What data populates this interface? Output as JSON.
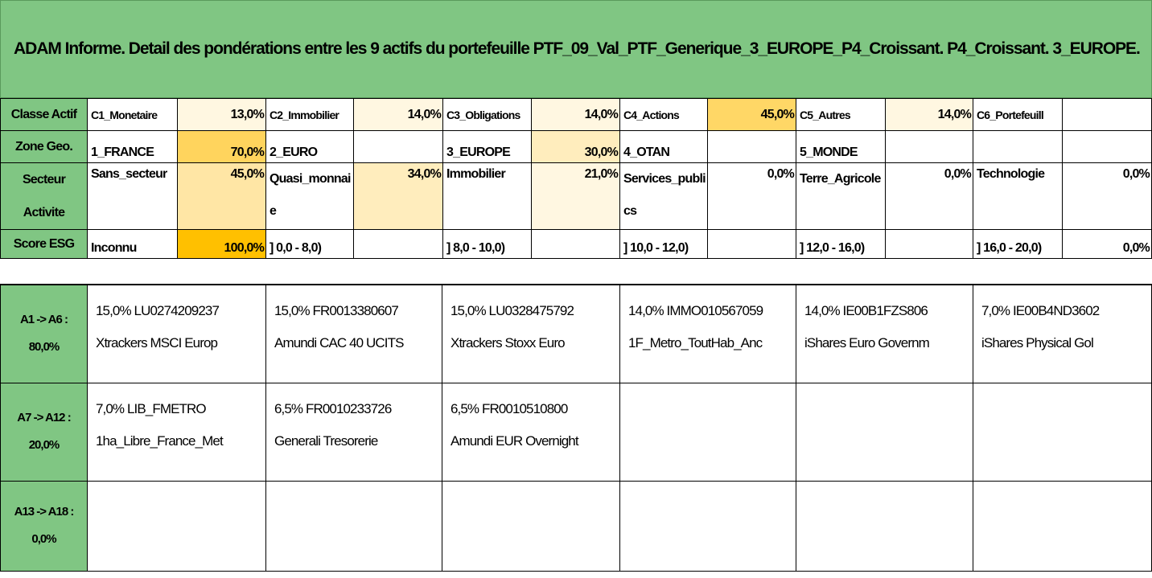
{
  "title": "ADAM Informe. Detail des pondérations entre les 9 actifs du portefeuille PTF_09_Val_PTF_Generique_3_EUROPE_P4_Croissant. P4_Croissant. 3_EUROPE.",
  "classe_actif": {
    "header": "Classe Actif",
    "items": [
      {
        "label": "C1_Monetaire",
        "pct": "13,0%"
      },
      {
        "label": "C2_Immobilier",
        "pct": "14,0%"
      },
      {
        "label": "C3_Obligations",
        "pct": "14,0%"
      },
      {
        "label": "C4_Actions",
        "pct": "45,0%"
      },
      {
        "label": "C5_Autres",
        "pct": "14,0%"
      },
      {
        "label": "C6_Portefeuill",
        "pct": ""
      }
    ]
  },
  "zone_geo": {
    "header": "Zone Geo.",
    "items": [
      {
        "label": "1_FRANCE",
        "pct": "70,0%"
      },
      {
        "label": "2_EURO",
        "pct": ""
      },
      {
        "label": "3_EUROPE",
        "pct": "30,0%"
      },
      {
        "label": "4_OTAN",
        "pct": ""
      },
      {
        "label": "5_MONDE",
        "pct": ""
      },
      {
        "label": "",
        "pct": ""
      }
    ]
  },
  "secteur": {
    "header": "Secteur Activite",
    "items": [
      {
        "label": "Sans_secteur",
        "pct": "45,0%"
      },
      {
        "label": "Quasi_monnaie",
        "pct": "34,0%"
      },
      {
        "label": "Immobilier",
        "pct": "21,0%"
      },
      {
        "label": "Services_publics",
        "pct": "0,0%"
      },
      {
        "label": "Terre_Agricole",
        "pct": "0,0%"
      },
      {
        "label": "Technologie",
        "pct": "0,0%"
      }
    ]
  },
  "score_esg": {
    "header": "Score ESG",
    "items": [
      {
        "label": "Inconnu",
        "pct": "100,0%"
      },
      {
        "label": "] 0,0 - 8,0)",
        "pct": ""
      },
      {
        "label": "] 8,0 - 10,0)",
        "pct": ""
      },
      {
        "label": "] 10,0 - 12,0)",
        "pct": ""
      },
      {
        "label": "] 12,0 - 16,0)",
        "pct": ""
      },
      {
        "label": "] 16,0 - 20,0)",
        "pct": "0,0%"
      }
    ]
  },
  "groups": [
    {
      "header_line1": "A1 -> A6 :",
      "header_line2": "80,0%",
      "assets": [
        {
          "line1": "15,0% LU0274209237",
          "line2": "Xtrackers MSCI Europ"
        },
        {
          "line1": "15,0% FR0013380607",
          "line2": "Amundi CAC 40 UCITS"
        },
        {
          "line1": "15,0% LU0328475792",
          "line2": "Xtrackers Stoxx Euro"
        },
        {
          "line1": "14,0% IMMO010567059",
          "line2": "1F_Metro_ToutHab_Anc"
        },
        {
          "line1": "14,0% IE00B1FZS806",
          "line2": "iShares Euro Governm"
        },
        {
          "line1": "7,0% IE00B4ND3602",
          "line2": "iShares Physical Gol"
        }
      ]
    },
    {
      "header_line1": "A7 -> A12 :",
      "header_line2": "20,0%",
      "assets": [
        {
          "line1": "7,0% LIB_FMETRO",
          "line2": "1ha_Libre_France_Met"
        },
        {
          "line1": "6,5% FR0010233726",
          "line2": "Generali Tresorerie"
        },
        {
          "line1": "6,5% FR0010510800",
          "line2": "Amundi EUR Overnight"
        },
        {
          "line1": "",
          "line2": ""
        },
        {
          "line1": "",
          "line2": ""
        },
        {
          "line1": "",
          "line2": ""
        }
      ]
    },
    {
      "header_line1": "A13 -> A18 :",
      "header_line2": "0,0%",
      "assets": [
        {
          "line1": "",
          "line2": ""
        },
        {
          "line1": "",
          "line2": ""
        },
        {
          "line1": "",
          "line2": ""
        },
        {
          "line1": "",
          "line2": ""
        },
        {
          "line1": "",
          "line2": ""
        },
        {
          "line1": "",
          "line2": ""
        }
      ]
    }
  ],
  "colors": {
    "header_green": "#80c683",
    "heat_low": "#fff7e1",
    "heat_mid": "#ffe6a5",
    "heat_high": "#ffd766",
    "heat_max": "#ffc000"
  }
}
